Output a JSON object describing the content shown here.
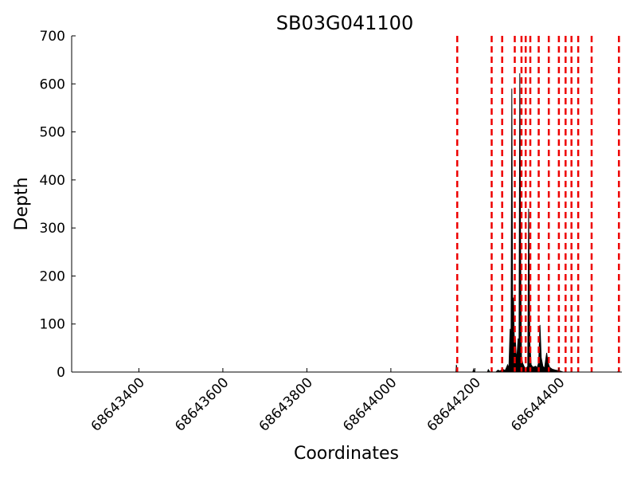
{
  "chart_data": {
    "type": "area",
    "title": "SB03G041100",
    "xlabel": "Coordinates",
    "ylabel": "Depth",
    "xlim": [
      68643240,
      68644550
    ],
    "ylim": [
      0,
      700
    ],
    "x_ticks": [
      68643400,
      68643600,
      68643800,
      68644000,
      68644200,
      68644400
    ],
    "x_tick_labels": [
      "68643400",
      "68643600",
      "68643800",
      "68644000",
      "68644200",
      "68644400"
    ],
    "y_ticks": [
      0,
      100,
      200,
      300,
      400,
      500,
      600,
      700
    ],
    "y_tick_labels": [
      "0",
      "100",
      "200",
      "300",
      "400",
      "500",
      "600",
      "700"
    ],
    "grid": false,
    "series": [
      {
        "color": "#000000",
        "points": [
          [
            68643240,
            0
          ],
          [
            68644155,
            0
          ],
          [
            68644156,
            15
          ],
          [
            68644158,
            3
          ],
          [
            68644160,
            0
          ],
          [
            68644195,
            0
          ],
          [
            68644197,
            6
          ],
          [
            68644199,
            0
          ],
          [
            68644230,
            0
          ],
          [
            68644232,
            5
          ],
          [
            68644236,
            0
          ],
          [
            68644250,
            0
          ],
          [
            68644255,
            4
          ],
          [
            68644260,
            2
          ],
          [
            68644266,
            6
          ],
          [
            68644272,
            3
          ],
          [
            68644278,
            15
          ],
          [
            68644281,
            8
          ],
          [
            68644284,
            90
          ],
          [
            68644286,
            40
          ],
          [
            68644288,
            590
          ],
          [
            68644290,
            100
          ],
          [
            68644292,
            155
          ],
          [
            68644294,
            60
          ],
          [
            68644296,
            75
          ],
          [
            68644298,
            40
          ],
          [
            68644300,
            30
          ],
          [
            68644303,
            70
          ],
          [
            68644305,
            25
          ],
          [
            68644307,
            622
          ],
          [
            68644309,
            240
          ],
          [
            68644311,
            30
          ],
          [
            68644314,
            18
          ],
          [
            68644318,
            10
          ],
          [
            68644322,
            8
          ],
          [
            68644326,
            12
          ],
          [
            68644328,
            340
          ],
          [
            68644331,
            60
          ],
          [
            68644334,
            15
          ],
          [
            68644338,
            10
          ],
          [
            68644345,
            12
          ],
          [
            68644348,
            8
          ],
          [
            68644352,
            20
          ],
          [
            68644355,
            98
          ],
          [
            68644358,
            30
          ],
          [
            68644362,
            12
          ],
          [
            68644366,
            8
          ],
          [
            68644369,
            28
          ],
          [
            68644371,
            40
          ],
          [
            68644374,
            20
          ],
          [
            68644378,
            10
          ],
          [
            68644384,
            6
          ],
          [
            68644392,
            4
          ],
          [
            68644400,
            3
          ],
          [
            68644410,
            0
          ],
          [
            68644540,
            0
          ],
          [
            68644542,
            3
          ],
          [
            68644544,
            0
          ],
          [
            68644550,
            0
          ]
        ]
      }
    ],
    "vlines": {
      "color": "#ee0000",
      "style": "dashed",
      "x": [
        68644158,
        68644240,
        68644265,
        68644295,
        68644311,
        68644321,
        68644332,
        68644352,
        68644376,
        68644400,
        68644416,
        68644430,
        68644446,
        68644478,
        68644543
      ]
    }
  }
}
